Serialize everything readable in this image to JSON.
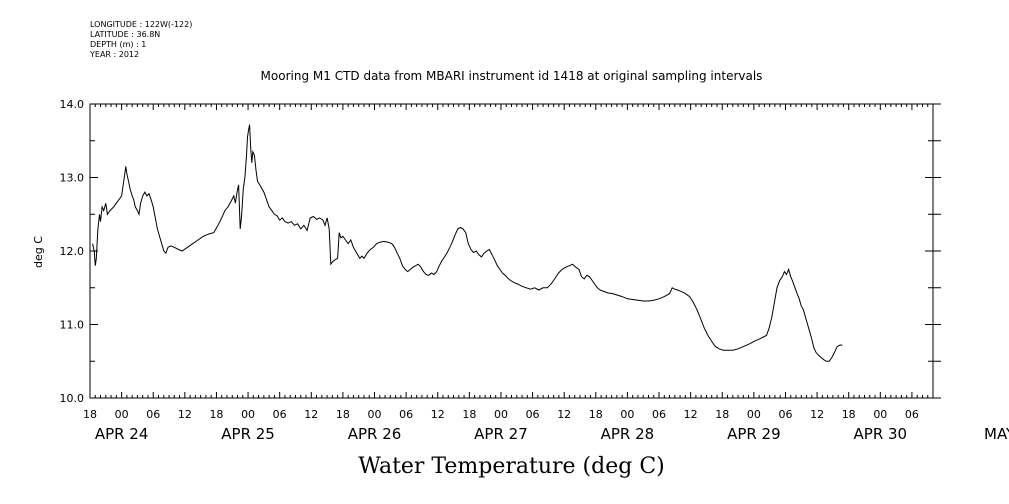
{
  "meta": {
    "longitude": "LONGITUDE : 122W(-122)",
    "latitude": "LATITUDE : 36.8N",
    "depth": "DEPTH (m) : 1",
    "year": "YEAR : 2012"
  },
  "chart_data": {
    "type": "line",
    "title": "Mooring M1 CTD data from MBARI instrument id 1418 at original sampling intervals",
    "xlabel": "Water Temperature (deg C)",
    "ylabel": "deg C",
    "ylim": [
      10.0,
      14.0
    ],
    "yticks": [
      "10.0",
      "11.0",
      "12.0",
      "13.0",
      "14.0"
    ],
    "xlim_hours": [
      0,
      160
    ],
    "x_hour_ticks": [
      "18",
      "00",
      "06",
      "12",
      "18",
      "00",
      "06",
      "12",
      "18",
      "00",
      "06",
      "12",
      "18",
      "00",
      "06",
      "12",
      "18",
      "00",
      "06",
      "12",
      "18",
      "00",
      "06",
      "12",
      "18",
      "00",
      "06"
    ],
    "day_labels": [
      {
        "label": "APR 24",
        "hour": 6
      },
      {
        "label": "APR 25",
        "hour": 30
      },
      {
        "label": "APR 26",
        "hour": 54
      },
      {
        "label": "APR 27",
        "hour": 78
      },
      {
        "label": "APR 28",
        "hour": 102
      },
      {
        "label": "APR 29",
        "hour": 126
      },
      {
        "label": "APR 30",
        "hour": 150
      },
      {
        "label": "MAY 1",
        "hour": 174
      }
    ],
    "series": [
      {
        "name": "",
        "points": [
          [
            0.5,
            12.1
          ],
          [
            0.8,
            12.0
          ],
          [
            1.0,
            11.8
          ],
          [
            1.2,
            11.9
          ],
          [
            1.5,
            12.3
          ],
          [
            1.8,
            12.5
          ],
          [
            2.0,
            12.4
          ],
          [
            2.3,
            12.6
          ],
          [
            2.6,
            12.55
          ],
          [
            3.0,
            12.65
          ],
          [
            3.3,
            12.5
          ],
          [
            3.8,
            12.55
          ],
          [
            4.5,
            12.6
          ],
          [
            5.0,
            12.65
          ],
          [
            5.5,
            12.7
          ],
          [
            6.0,
            12.75
          ],
          [
            6.3,
            12.9
          ],
          [
            6.6,
            13.05
          ],
          [
            6.8,
            13.15
          ],
          [
            7.0,
            13.05
          ],
          [
            7.3,
            12.95
          ],
          [
            7.6,
            12.85
          ],
          [
            8.0,
            12.75
          ],
          [
            8.3,
            12.7
          ],
          [
            8.6,
            12.6
          ],
          [
            9.0,
            12.55
          ],
          [
            9.3,
            12.5
          ],
          [
            9.6,
            12.65
          ],
          [
            10.0,
            12.75
          ],
          [
            10.4,
            12.8
          ],
          [
            10.8,
            12.75
          ],
          [
            11.2,
            12.78
          ],
          [
            11.6,
            12.7
          ],
          [
            12.0,
            12.6
          ],
          [
            12.4,
            12.45
          ],
          [
            12.8,
            12.3
          ],
          [
            13.2,
            12.2
          ],
          [
            13.6,
            12.1
          ],
          [
            14.0,
            12.0
          ],
          [
            14.4,
            11.97
          ],
          [
            14.8,
            12.05
          ],
          [
            15.3,
            12.07
          ],
          [
            16.0,
            12.05
          ],
          [
            16.8,
            12.02
          ],
          [
            17.5,
            12.0
          ],
          [
            18.5,
            12.05
          ],
          [
            19.5,
            12.1
          ],
          [
            20.5,
            12.15
          ],
          [
            21.5,
            12.2
          ],
          [
            22.5,
            12.23
          ],
          [
            23.5,
            12.25
          ],
          [
            24.3,
            12.35
          ],
          [
            25.0,
            12.45
          ],
          [
            25.6,
            12.55
          ],
          [
            26.2,
            12.6
          ],
          [
            26.8,
            12.68
          ],
          [
            27.3,
            12.75
          ],
          [
            27.6,
            12.65
          ],
          [
            27.9,
            12.8
          ],
          [
            28.2,
            12.9
          ],
          [
            28.5,
            12.3
          ],
          [
            28.8,
            12.5
          ],
          [
            29.1,
            12.85
          ],
          [
            29.4,
            13.0
          ],
          [
            29.7,
            13.3
          ],
          [
            29.9,
            13.55
          ],
          [
            30.1,
            13.65
          ],
          [
            30.3,
            13.72
          ],
          [
            30.5,
            13.4
          ],
          [
            30.7,
            13.2
          ],
          [
            30.9,
            13.35
          ],
          [
            31.2,
            13.3
          ],
          [
            31.5,
            13.1
          ],
          [
            31.8,
            12.95
          ],
          [
            32.2,
            12.9
          ],
          [
            32.6,
            12.85
          ],
          [
            33.0,
            12.8
          ],
          [
            33.5,
            12.7
          ],
          [
            34.0,
            12.6
          ],
          [
            34.5,
            12.55
          ],
          [
            35.0,
            12.5
          ],
          [
            35.5,
            12.48
          ],
          [
            36.0,
            12.42
          ],
          [
            36.5,
            12.45
          ],
          [
            37.0,
            12.4
          ],
          [
            37.6,
            12.38
          ],
          [
            38.2,
            12.4
          ],
          [
            38.8,
            12.35
          ],
          [
            39.4,
            12.37
          ],
          [
            40.0,
            12.3
          ],
          [
            40.6,
            12.35
          ],
          [
            41.2,
            12.28
          ],
          [
            41.8,
            12.45
          ],
          [
            42.4,
            12.47
          ],
          [
            43.0,
            12.43
          ],
          [
            43.6,
            12.45
          ],
          [
            44.2,
            12.42
          ],
          [
            44.6,
            12.35
          ],
          [
            45.0,
            12.45
          ],
          [
            45.4,
            12.3
          ],
          [
            45.7,
            11.82
          ],
          [
            46.0,
            11.85
          ],
          [
            46.5,
            11.88
          ],
          [
            47.0,
            11.9
          ],
          [
            47.3,
            12.25
          ],
          [
            47.6,
            12.18
          ],
          [
            48.0,
            12.2
          ],
          [
            48.5,
            12.15
          ],
          [
            49.0,
            12.1
          ],
          [
            49.5,
            12.15
          ],
          [
            50.0,
            12.05
          ],
          [
            50.4,
            12.0
          ],
          [
            50.8,
            11.95
          ],
          [
            51.2,
            11.9
          ],
          [
            51.6,
            11.93
          ],
          [
            52.0,
            11.9
          ],
          [
            52.6,
            11.97
          ],
          [
            53.2,
            12.02
          ],
          [
            53.8,
            12.05
          ],
          [
            54.4,
            12.1
          ],
          [
            55.0,
            12.12
          ],
          [
            55.8,
            12.13
          ],
          [
            56.6,
            12.12
          ],
          [
            57.3,
            12.1
          ],
          [
            57.8,
            12.05
          ],
          [
            58.3,
            11.97
          ],
          [
            58.8,
            11.9
          ],
          [
            59.3,
            11.8
          ],
          [
            59.8,
            11.75
          ],
          [
            60.3,
            11.72
          ],
          [
            60.8,
            11.75
          ],
          [
            61.3,
            11.78
          ],
          [
            61.8,
            11.8
          ],
          [
            62.3,
            11.82
          ],
          [
            62.8,
            11.78
          ],
          [
            63.3,
            11.72
          ],
          [
            63.8,
            11.68
          ],
          [
            64.3,
            11.67
          ],
          [
            64.8,
            11.7
          ],
          [
            65.3,
            11.68
          ],
          [
            65.8,
            11.72
          ],
          [
            66.3,
            11.8
          ],
          [
            66.8,
            11.87
          ],
          [
            67.3,
            11.92
          ],
          [
            67.8,
            11.98
          ],
          [
            68.3,
            12.05
          ],
          [
            68.8,
            12.13
          ],
          [
            69.3,
            12.22
          ],
          [
            69.8,
            12.3
          ],
          [
            70.3,
            12.32
          ],
          [
            70.8,
            12.3
          ],
          [
            71.3,
            12.25
          ],
          [
            71.8,
            12.1
          ],
          [
            72.3,
            12.02
          ],
          [
            72.8,
            11.98
          ],
          [
            73.3,
            12.0
          ],
          [
            73.8,
            11.95
          ],
          [
            74.3,
            11.92
          ],
          [
            74.8,
            11.97
          ],
          [
            75.3,
            12.0
          ],
          [
            75.8,
            12.02
          ],
          [
            76.3,
            11.95
          ],
          [
            76.8,
            11.88
          ],
          [
            77.3,
            11.8
          ],
          [
            77.8,
            11.75
          ],
          [
            78.3,
            11.7
          ],
          [
            78.8,
            11.67
          ],
          [
            79.3,
            11.63
          ],
          [
            79.8,
            11.6
          ],
          [
            80.5,
            11.57
          ],
          [
            81.2,
            11.55
          ],
          [
            82.0,
            11.52
          ],
          [
            82.8,
            11.5
          ],
          [
            83.6,
            11.48
          ],
          [
            84.4,
            11.5
          ],
          [
            85.2,
            11.47
          ],
          [
            86.0,
            11.5
          ],
          [
            86.8,
            11.5
          ],
          [
            87.5,
            11.55
          ],
          [
            88.2,
            11.62
          ],
          [
            88.9,
            11.7
          ],
          [
            89.6,
            11.75
          ],
          [
            90.3,
            11.78
          ],
          [
            91.0,
            11.8
          ],
          [
            91.6,
            11.82
          ],
          [
            92.2,
            11.78
          ],
          [
            92.8,
            11.75
          ],
          [
            93.3,
            11.65
          ],
          [
            93.8,
            11.62
          ],
          [
            94.3,
            11.67
          ],
          [
            94.8,
            11.65
          ],
          [
            95.3,
            11.6
          ],
          [
            95.8,
            11.55
          ],
          [
            96.3,
            11.5
          ],
          [
            96.8,
            11.47
          ],
          [
            97.5,
            11.45
          ],
          [
            98.3,
            11.43
          ],
          [
            99.2,
            11.42
          ],
          [
            100.1,
            11.4
          ],
          [
            101.0,
            11.38
          ],
          [
            102.0,
            11.35
          ],
          [
            103.0,
            11.34
          ],
          [
            104.0,
            11.33
          ],
          [
            105.0,
            11.32
          ],
          [
            106.0,
            11.32
          ],
          [
            107.0,
            11.33
          ],
          [
            108.0,
            11.35
          ],
          [
            109.0,
            11.38
          ],
          [
            110.0,
            11.42
          ],
          [
            110.5,
            11.5
          ],
          [
            111.0,
            11.48
          ],
          [
            111.5,
            11.47
          ],
          [
            112.2,
            11.45
          ],
          [
            113.0,
            11.42
          ],
          [
            113.8,
            11.38
          ],
          [
            114.5,
            11.3
          ],
          [
            115.2,
            11.2
          ],
          [
            115.9,
            11.08
          ],
          [
            116.6,
            10.95
          ],
          [
            117.3,
            10.85
          ],
          [
            118.0,
            10.77
          ],
          [
            118.7,
            10.7
          ],
          [
            119.4,
            10.67
          ],
          [
            120.2,
            10.65
          ],
          [
            121.0,
            10.65
          ],
          [
            122.0,
            10.65
          ],
          [
            123.0,
            10.67
          ],
          [
            124.0,
            10.7
          ],
          [
            125.0,
            10.73
          ],
          [
            126.0,
            10.77
          ],
          [
            127.0,
            10.8
          ],
          [
            127.8,
            10.83
          ],
          [
            128.4,
            10.85
          ],
          [
            128.9,
            10.95
          ],
          [
            129.4,
            11.1
          ],
          [
            129.9,
            11.3
          ],
          [
            130.4,
            11.5
          ],
          [
            130.9,
            11.6
          ],
          [
            131.4,
            11.65
          ],
          [
            131.8,
            11.72
          ],
          [
            132.2,
            11.68
          ],
          [
            132.6,
            11.75
          ],
          [
            133.0,
            11.65
          ],
          [
            133.4,
            11.58
          ],
          [
            133.8,
            11.5
          ],
          [
            134.2,
            11.42
          ],
          [
            134.6,
            11.35
          ],
          [
            135.0,
            11.25
          ],
          [
            135.4,
            11.2
          ],
          [
            135.8,
            11.1
          ],
          [
            136.2,
            11.0
          ],
          [
            136.6,
            10.9
          ],
          [
            137.0,
            10.8
          ],
          [
            137.4,
            10.68
          ],
          [
            137.8,
            10.62
          ],
          [
            138.3,
            10.58
          ],
          [
            138.8,
            10.55
          ],
          [
            139.3,
            10.52
          ],
          [
            139.8,
            10.5
          ],
          [
            140.3,
            10.5
          ],
          [
            140.8,
            10.55
          ],
          [
            141.3,
            10.62
          ],
          [
            141.8,
            10.7
          ],
          [
            142.3,
            10.72
          ],
          [
            142.8,
            10.72
          ]
        ]
      }
    ]
  }
}
